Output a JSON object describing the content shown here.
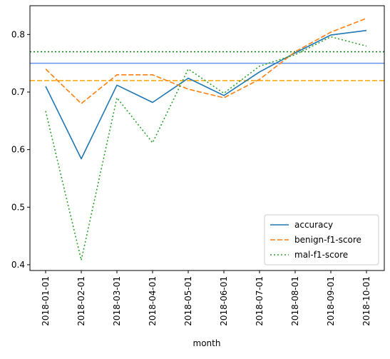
{
  "chart_data": {
    "type": "line",
    "xlabel": "month",
    "categories": [
      "2018-01-01",
      "2018-02-01",
      "2018-03-01",
      "2018-04-01",
      "2018-05-01",
      "2018-06-01",
      "2018-07-01",
      "2018-08-01",
      "2018-09-01",
      "2018-10-01"
    ],
    "ylim": [
      0.39,
      0.85
    ],
    "yticks": [
      0.4,
      0.5,
      0.6,
      0.7,
      0.8
    ],
    "ytick_labels": [
      "0.4",
      "0.5",
      "0.6",
      "0.7",
      "0.8"
    ],
    "series": [
      {
        "name": "accuracy",
        "style": "solid",
        "color": "#1f77b4",
        "values": [
          0.71,
          0.584,
          0.712,
          0.682,
          0.724,
          0.694,
          0.735,
          0.768,
          0.799,
          0.807
        ]
      },
      {
        "name": "benign-f1-score",
        "style": "dashed",
        "color": "#ff7f0e",
        "values": [
          0.74,
          0.68,
          0.73,
          0.73,
          0.705,
          0.69,
          0.722,
          0.77,
          0.804,
          0.828
        ]
      },
      {
        "name": "mal-f1-score",
        "style": "dotted",
        "color": "#2ca02c",
        "values": [
          0.667,
          0.408,
          0.69,
          0.612,
          0.74,
          0.698,
          0.745,
          0.765,
          0.796,
          0.78
        ]
      }
    ],
    "reference_lines": [
      {
        "value": 0.75,
        "style": "solid",
        "color": "#6495ed"
      },
      {
        "value": 0.72,
        "style": "dashed",
        "color": "#ffa500"
      },
      {
        "value": 0.77,
        "style": "dotted",
        "color": "#008000"
      }
    ],
    "legend_position": "lower-right",
    "grid": false
  }
}
